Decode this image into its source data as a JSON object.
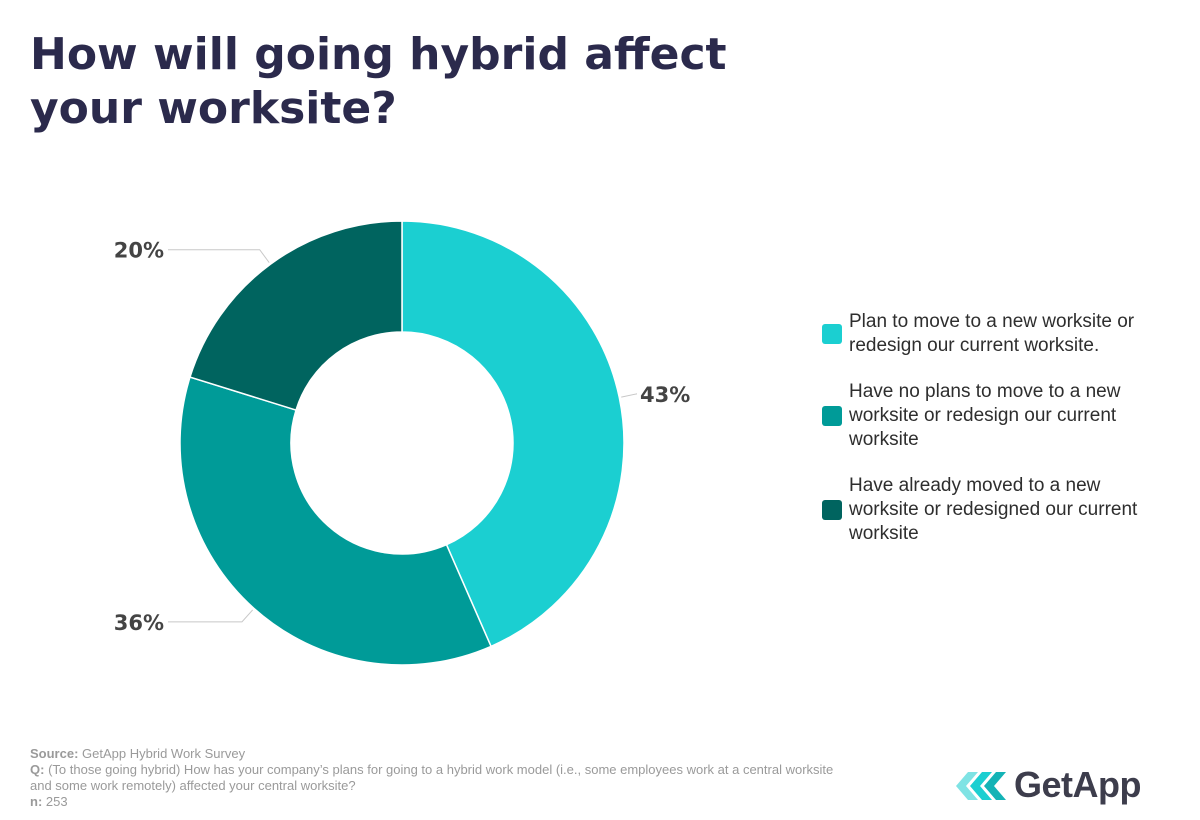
{
  "page": {
    "title": "How will going hybrid affect your worksite?"
  },
  "chart_data": {
    "type": "pie",
    "donut": true,
    "title": "How will going hybrid affect your worksite?",
    "categories": [
      "Plan to move to a new worksite or redesign our current worksite.",
      "Have no plans to move to a new worksite or redesign our current worksite",
      "Have already moved to a new worksite or redesigned our current worksite"
    ],
    "values": [
      43,
      36,
      20
    ],
    "value_labels": [
      "43%",
      "36%",
      "20%"
    ],
    "colors": [
      "#1bcfd1",
      "#009b98",
      "#00645f"
    ],
    "legend_position": "right"
  },
  "footer": {
    "source_label": "Source:",
    "source_text": "GetApp Hybrid Work Survey",
    "q_label": "Q:",
    "q_text": "(To those going hybrid) How has your company’s plans for going to a hybrid work model (i.e., some employees work at a central worksite and some work remotely) affected your central worksite?",
    "n_label": "n:",
    "n_text": "253"
  },
  "logo": {
    "text": "GetApp",
    "icon": "getapp-chevrons-icon",
    "colors": [
      "#1bcfd1",
      "#7fe3e4"
    ]
  }
}
